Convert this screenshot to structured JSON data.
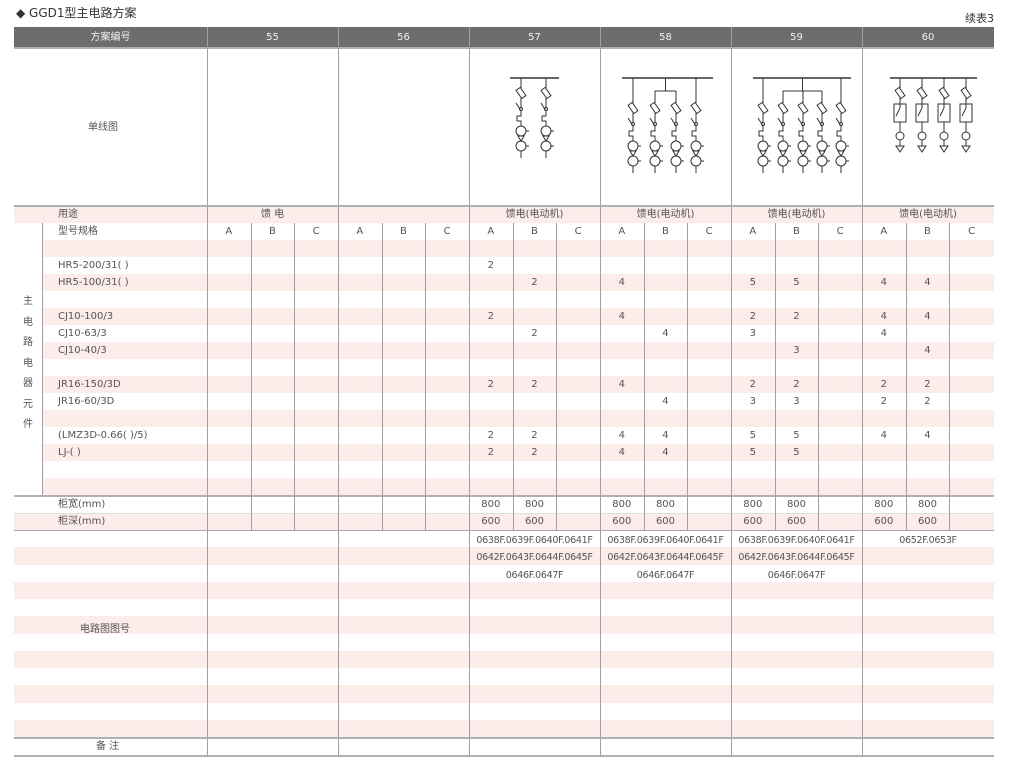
{
  "title": "◆ GGD1型主电路方案",
  "continued": "续表3",
  "header": {
    "label": "方案编号",
    "schemes": [
      "55",
      "56",
      "57",
      "58",
      "59",
      "60"
    ]
  },
  "diagram_label": "单线图",
  "usage": {
    "label": "用途",
    "values": [
      "馈 电",
      "",
      "馈电(电动机)",
      "馈电(电动机)",
      "馈电(电动机)",
      "馈电(电动机)"
    ]
  },
  "components": {
    "group_label": [
      "主",
      "电",
      "路",
      "电",
      "器",
      "元",
      "件"
    ],
    "spec_label": "型号规格",
    "subcols": [
      "A",
      "B",
      "C"
    ],
    "rows": [
      {
        "label": "",
        "values": [
          "",
          "",
          "",
          "",
          "",
          "",
          "",
          "",
          "",
          "",
          "",
          "",
          "",
          "",
          "",
          "",
          "",
          ""
        ]
      },
      {
        "label": "HR5-200/31( )",
        "values": [
          "",
          "",
          "",
          "",
          "",
          "",
          "2",
          "",
          "",
          "",
          "",
          "",
          "",
          "",
          "",
          "",
          "",
          ""
        ]
      },
      {
        "label": "HR5-100/31( )",
        "values": [
          "",
          "",
          "",
          "",
          "",
          "",
          "",
          "2",
          "",
          "4",
          "",
          "",
          "5",
          "5",
          "",
          "4",
          "4",
          ""
        ]
      },
      {
        "label": "",
        "values": [
          "",
          "",
          "",
          "",
          "",
          "",
          "",
          "",
          "",
          "",
          "",
          "",
          "",
          "",
          "",
          "",
          "",
          ""
        ]
      },
      {
        "label": "CJ10-100/3",
        "values": [
          "",
          "",
          "",
          "",
          "",
          "",
          "2",
          "",
          "",
          "4",
          "",
          "",
          "2",
          "2",
          "",
          "4",
          "4",
          ""
        ]
      },
      {
        "label": "CJ10-63/3",
        "values": [
          "",
          "",
          "",
          "",
          "",
          "",
          "",
          "2",
          "",
          "",
          "4",
          "",
          "3",
          "",
          "",
          "4",
          "",
          ""
        ]
      },
      {
        "label": "CJ10-40/3",
        "values": [
          "",
          "",
          "",
          "",
          "",
          "",
          "",
          "",
          "",
          "",
          "",
          "",
          "",
          "3",
          "",
          "",
          "4",
          ""
        ]
      },
      {
        "label": "",
        "values": [
          "",
          "",
          "",
          "",
          "",
          "",
          "",
          "",
          "",
          "",
          "",
          "",
          "",
          "",
          "",
          "",
          "",
          ""
        ]
      },
      {
        "label": "JR16-150/3D",
        "values": [
          "",
          "",
          "",
          "",
          "",
          "",
          "2",
          "2",
          "",
          "4",
          "",
          "",
          "2",
          "2",
          "",
          "2",
          "2",
          ""
        ]
      },
      {
        "label": "JR16-60/3D",
        "values": [
          "",
          "",
          "",
          "",
          "",
          "",
          "",
          "",
          "",
          "",
          "4",
          "",
          "3",
          "3",
          "",
          "2",
          "2",
          ""
        ]
      },
      {
        "label": "",
        "values": [
          "",
          "",
          "",
          "",
          "",
          "",
          "",
          "",
          "",
          "",
          "",
          "",
          "",
          "",
          "",
          "",
          "",
          ""
        ]
      },
      {
        "label": "(LMZ3D-0.66( )/5)",
        "values": [
          "",
          "",
          "",
          "",
          "",
          "",
          "2",
          "2",
          "",
          "4",
          "4",
          "",
          "5",
          "5",
          "",
          "4",
          "4",
          ""
        ]
      },
      {
        "label": "LJ-( )",
        "values": [
          "",
          "",
          "",
          "",
          "",
          "",
          "2",
          "2",
          "",
          "4",
          "4",
          "",
          "5",
          "5",
          "",
          "",
          "",
          ""
        ]
      },
      {
        "label": "",
        "values": [
          "",
          "",
          "",
          "",
          "",
          "",
          "",
          "",
          "",
          "",
          "",
          "",
          "",
          "",
          "",
          "",
          "",
          ""
        ]
      },
      {
        "label": "",
        "values": [
          "",
          "",
          "",
          "",
          "",
          "",
          "",
          "",
          "",
          "",
          "",
          "",
          "",
          "",
          "",
          "",
          "",
          ""
        ]
      }
    ]
  },
  "cabinet": [
    {
      "label": "柜宽(mm)",
      "values": [
        "",
        "",
        "",
        "",
        "",
        "",
        "800",
        "800",
        "",
        "800",
        "800",
        "",
        "800",
        "800",
        "",
        "800",
        "800",
        ""
      ]
    },
    {
      "label": "柜深(mm)",
      "values": [
        "",
        "",
        "",
        "",
        "",
        "",
        "600",
        "600",
        "",
        "600",
        "600",
        "",
        "600",
        "600",
        "",
        "600",
        "600",
        ""
      ]
    }
  ],
  "circuit": {
    "label": "电路图图号",
    "groups": [
      [],
      [],
      [
        "0638F.0639F.0640F.0641F",
        "0642F.0643F.0644F.0645F",
        "0646F.0647F"
      ],
      [
        "0638F.0639F.0640F.0641F",
        "0642F.0643F.0644F.0645F",
        "0646F.0647F"
      ],
      [
        "0638F.0639F.0640F.0641F",
        "0642F.0643F.0644F.0645F",
        "0646F.0647F"
      ],
      [
        "0652F.0653F"
      ]
    ]
  },
  "remarks": {
    "label": "备 注"
  },
  "diagrams": [
    "none",
    "none",
    "2-branch feeder",
    "4-branch feeder",
    "5-branch feeder",
    "4-branch motor feeder"
  ],
  "colors": {
    "header_bg": "#6d6d70",
    "stripe": "#fcecea",
    "rule": "#a0a0a0"
  }
}
